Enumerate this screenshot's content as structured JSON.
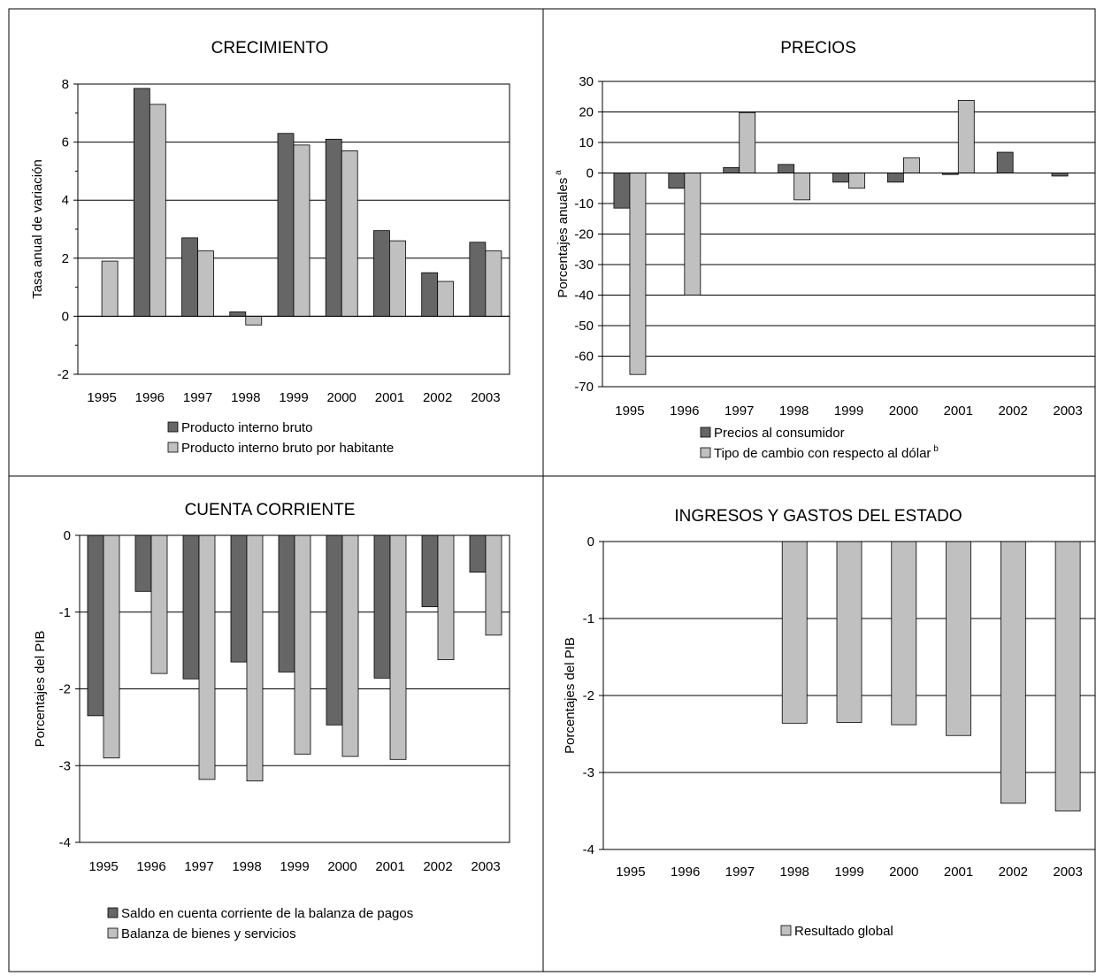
{
  "colors": {
    "dark": "#666666",
    "light": "#c0c0c0",
    "border": "#000000",
    "grid": "#000000"
  },
  "chart_data": [
    {
      "type": "bar",
      "title": "CRECIMIENTO",
      "ylabel": "Tasa anual de variación",
      "ylabel_sup": "",
      "categories": [
        "1995",
        "1996",
        "1997",
        "1998",
        "1999",
        "2000",
        "2001",
        "2002",
        "2003"
      ],
      "ylim": [
        -2,
        8
      ],
      "yticks": [
        -2,
        0,
        2,
        4,
        6,
        8
      ],
      "series": [
        {
          "name": "Producto interno bruto",
          "color": "#666666",
          "legend_sup": "",
          "values": [
            null,
            7.85,
            2.7,
            0.15,
            6.3,
            6.1,
            2.95,
            1.5,
            2.55
          ]
        },
        {
          "name": "Producto interno bruto por habitante",
          "color": "#c0c0c0",
          "legend_sup": "",
          "values": [
            1.9,
            7.3,
            2.25,
            -0.3,
            5.9,
            5.7,
            2.6,
            1.2,
            2.25
          ]
        }
      ],
      "grid": true
    },
    {
      "type": "bar",
      "title": "PRECIOS",
      "ylabel": "Porcentajes anuales",
      "ylabel_sup": "a",
      "categories": [
        "1995",
        "1996",
        "1997",
        "1998",
        "1999",
        "2000",
        "2001",
        "2002",
        "2003"
      ],
      "ylim": [
        -70,
        30
      ],
      "yticks": [
        -70,
        -60,
        -50,
        -40,
        -30,
        -20,
        -10,
        0,
        10,
        20,
        30
      ],
      "series": [
        {
          "name": "Precios al consumidor",
          "color": "#666666",
          "legend_sup": "",
          "values": [
            -11.5,
            -5,
            1.8,
            2.8,
            -3,
            -3,
            -0.5,
            6.8,
            -1
          ]
        },
        {
          "name": "Tipo de cambio con respecto al dólar",
          "color": "#c0c0c0",
          "legend_sup": "b",
          "values": [
            -66,
            -40,
            19.8,
            -8.8,
            -5,
            5,
            23.8,
            null,
            null
          ]
        }
      ],
      "grid": true
    },
    {
      "type": "bar",
      "title": "CUENTA CORRIENTE",
      "ylabel": "Porcentajes del PIB",
      "ylabel_sup": "",
      "categories": [
        "1995",
        "1996",
        "1997",
        "1998",
        "1999",
        "2000",
        "2001",
        "2002",
        "2003"
      ],
      "ylim": [
        -4,
        0
      ],
      "yticks": [
        -4,
        -3,
        -2,
        -1,
        0
      ],
      "series": [
        {
          "name": "Saldo en cuenta corriente de la balanza de pagos",
          "color": "#666666",
          "legend_sup": "",
          "values": [
            -2.35,
            -0.73,
            -1.87,
            -1.65,
            -1.78,
            -2.47,
            -1.86,
            -0.93,
            -0.48
          ]
        },
        {
          "name": "Balanza de bienes y servicios",
          "color": "#c0c0c0",
          "legend_sup": "",
          "values": [
            -2.9,
            -1.8,
            -3.18,
            -3.2,
            -2.85,
            -2.88,
            -2.92,
            -1.62,
            -1.3
          ]
        }
      ],
      "grid": true
    },
    {
      "type": "bar",
      "title": "INGRESOS Y GASTOS DEL ESTADO",
      "ylabel": "Porcentajes del PIB",
      "ylabel_sup": "",
      "categories": [
        "1995",
        "1996",
        "1997",
        "1998",
        "1999",
        "2000",
        "2001",
        "2002",
        "2003"
      ],
      "ylim": [
        -4,
        0
      ],
      "yticks": [
        -4,
        -3,
        -2,
        -1,
        0
      ],
      "series": [
        {
          "name": "Resultado global",
          "color": "#c0c0c0",
          "legend_sup": "",
          "values": [
            null,
            null,
            null,
            -2.36,
            -2.35,
            -2.38,
            -2.52,
            -3.4,
            -3.5
          ]
        }
      ],
      "grid": true
    }
  ]
}
